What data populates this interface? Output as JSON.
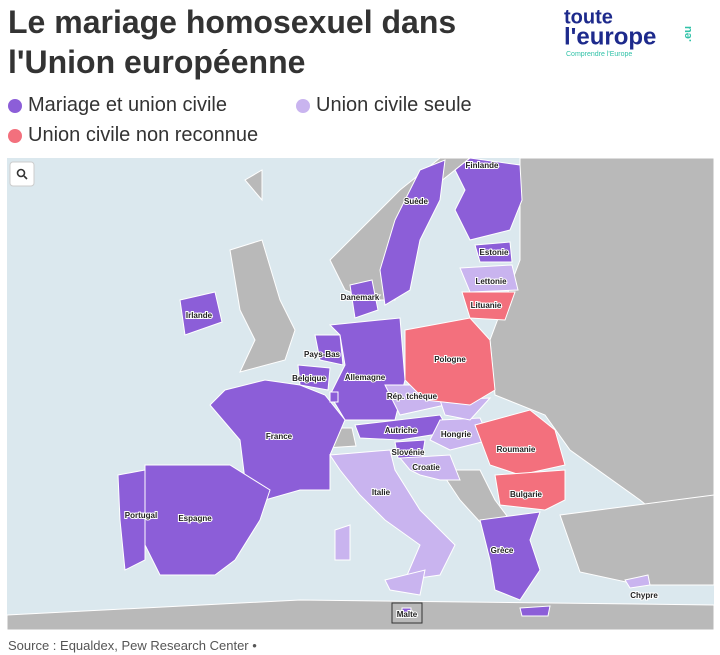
{
  "header": {
    "title_lines": [
      "Le mariage homosexuel dans",
      "l'Union européenne"
    ],
    "logo": {
      "line1": "toute",
      "line2": "l'europe",
      "suffix": ".eu",
      "tagline": "Comprendre l'Europe"
    }
  },
  "legend": [
    {
      "label": "Mariage et union civile",
      "color": "#8c5ed8",
      "countries": [
        "Finlande",
        "Suède",
        "Estonie",
        "Danemark",
        "Irlande",
        "Pays-Bas",
        "Belgique",
        "Allemagne",
        "Autriche",
        "Slovénie",
        "France",
        "Portugal",
        "Espagne",
        "Grèce",
        "Malte",
        null
      ]
    },
    {
      "label": "Union civile seule",
      "color": "#c9b4ef",
      "countries": [
        "Lettonie",
        "Rép. tchèque",
        "Hongrie",
        "Croatie",
        "Italie",
        "Chypre",
        null
      ]
    },
    {
      "label": "Union civile non reconnue",
      "color": "#f3707d",
      "countries": [
        "Lituanie",
        "Pologne",
        "Roumanie",
        "Bulgarie"
      ]
    }
  ],
  "source": "Source : Equaldex, Pew Research Center •"
}
